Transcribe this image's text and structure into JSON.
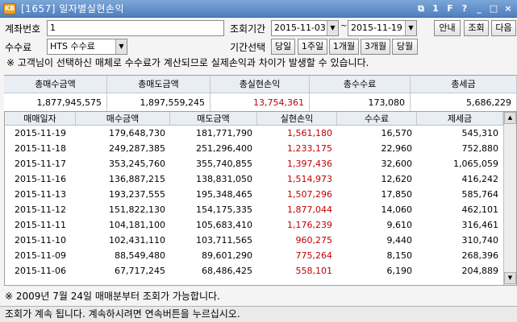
{
  "window": {
    "title": "[1657] 일자별실현손익",
    "app_icon": "KB",
    "controls": [
      "⧉",
      "1",
      "F",
      "?",
      "_",
      "□",
      "×"
    ]
  },
  "form": {
    "account_label": "계좌번호",
    "account_value": "1",
    "fee_label": "수수료",
    "fee_value": "HTS 수수료",
    "period_label": "조회기간",
    "date_from": "2015-11-03",
    "date_tilde": "~",
    "date_to": "2015-11-19",
    "period_select_label": "기간선택",
    "period_buttons": [
      "당일",
      "1주일",
      "1개월",
      "3개월",
      "당월"
    ],
    "guide_button": "안내",
    "query_button": "조회",
    "next_button": "다음",
    "notice": "※ 고객님이 선택하신 매체로 수수료가 계산되므로 실제손익과 차이가 발생할 수 있습니다."
  },
  "summary": {
    "headers": [
      "총매수금액",
      "총매도금액",
      "총실현손익",
      "총수수료",
      "총세금"
    ],
    "values": [
      "1,877,945,575",
      "1,897,559,245",
      "13,754,361",
      "173,080",
      "5,686,229"
    ]
  },
  "grid": {
    "headers": [
      "매매일자",
      "매수금액",
      "매도금액",
      "실현손익",
      "수수료",
      "제세금"
    ],
    "rows": [
      [
        "2015-11-19",
        "179,648,730",
        "181,771,790",
        "1,561,180",
        "16,570",
        "545,310"
      ],
      [
        "2015-11-18",
        "249,287,385",
        "251,296,400",
        "1,233,175",
        "22,960",
        "752,880"
      ],
      [
        "2015-11-17",
        "353,245,760",
        "355,740,855",
        "1,397,436",
        "32,600",
        "1,065,059"
      ],
      [
        "2015-11-16",
        "136,887,215",
        "138,831,050",
        "1,514,973",
        "12,620",
        "416,242"
      ],
      [
        "2015-11-13",
        "193,237,555",
        "195,348,465",
        "1,507,296",
        "17,850",
        "585,764"
      ],
      [
        "2015-11-12",
        "151,822,130",
        "154,175,335",
        "1,877,044",
        "14,060",
        "462,101"
      ],
      [
        "2015-11-11",
        "104,181,100",
        "105,683,410",
        "1,176,239",
        "9,610",
        "316,461"
      ],
      [
        "2015-11-10",
        "102,431,110",
        "103,711,565",
        "960,275",
        "9,440",
        "310,740"
      ],
      [
        "2015-11-09",
        "88,549,480",
        "89,601,290",
        "775,264",
        "8,150",
        "268,396"
      ],
      [
        "2015-11-06",
        "67,717,245",
        "68,486,425",
        "558,101",
        "6,190",
        "204,889"
      ]
    ]
  },
  "footnote": "※ 2009년 7월 24일 매매분부터 조회가 가능합니다.",
  "status": "조회가 계속 됩니다. 계속하시려면 연속버튼을 누르십시오.",
  "colors": {
    "profit": "#c00000",
    "title_bar": "#4f7fbe"
  }
}
